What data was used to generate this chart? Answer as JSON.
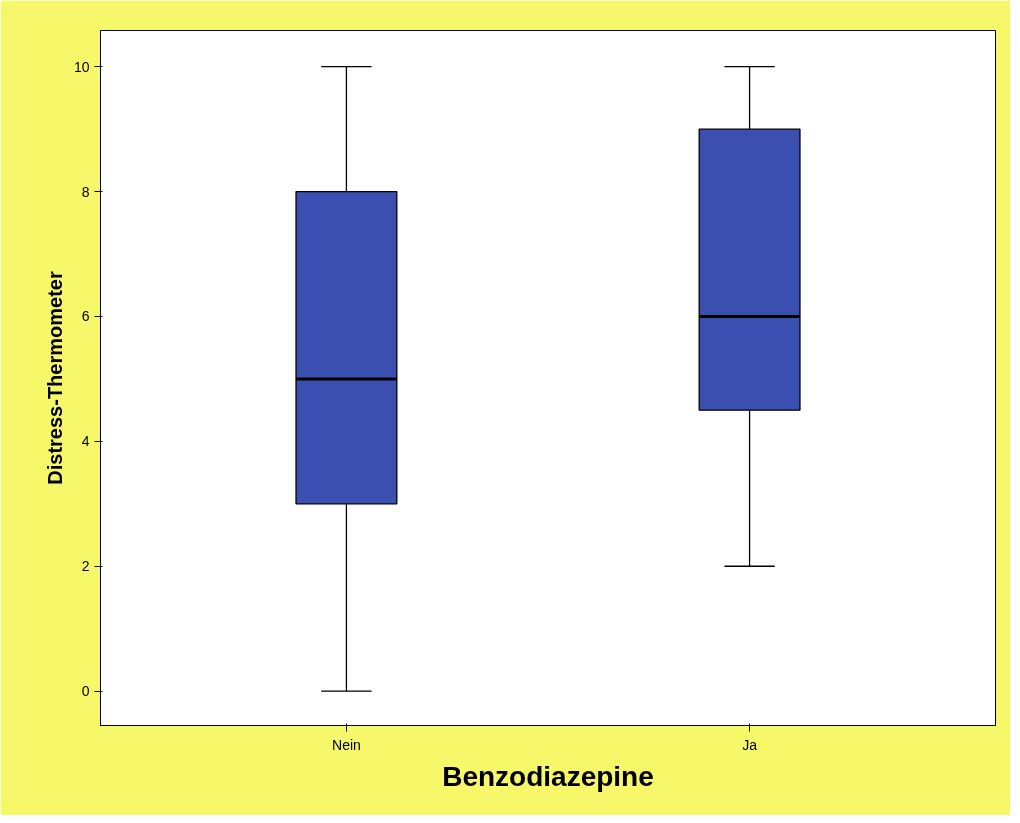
{
  "chart_data": {
    "type": "box",
    "xlabel": "Benzodiazepine",
    "ylabel": "Distress-Thermometer",
    "categories": [
      "Nein",
      "Ja"
    ],
    "color": "#3a4fb0",
    "boxes": [
      {
        "low": 0,
        "q1": 3,
        "median": 5,
        "q3": 8,
        "high": 10
      },
      {
        "low": 2,
        "q1": 4.5,
        "median": 6,
        "q3": 9,
        "high": 10
      }
    ],
    "ylim": [
      -0.55,
      10.58
    ],
    "yticks": [
      0,
      2,
      4,
      6,
      8,
      10
    ],
    "grid": false
  }
}
